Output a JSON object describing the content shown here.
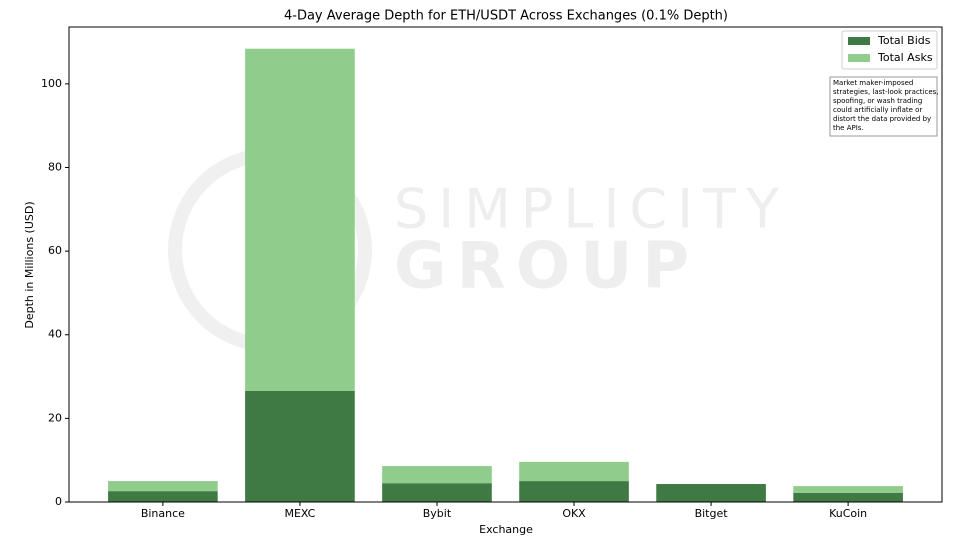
{
  "chart_data": {
    "type": "stacked-bar",
    "title": "4-Day Average Depth for ETH/USDT Across Exchanges (0.1% Depth)",
    "x_label": "Exchange",
    "y_label": "Depth in Millions (USD)",
    "categories": [
      "Binance",
      "MEXC",
      "Bybit",
      "OKX",
      "Bitget",
      "KuCoin"
    ],
    "series": [
      {
        "name": "Total Bids",
        "color": "#3f7a45",
        "values": [
          2.6,
          26.6,
          4.5,
          5.0,
          4.3,
          2.2
        ]
      },
      {
        "name": "Total Asks",
        "color": "#90cc8b",
        "values": [
          2.4,
          81.8,
          4.1,
          4.6,
          0,
          1.6
        ]
      }
    ],
    "ylim": [
      0,
      113.6
    ],
    "yticks": [
      0,
      20,
      40,
      60,
      80,
      100
    ],
    "legend": "upper-right",
    "annotation": [
      "Market maker-imposed",
      "strategies, last-look practices,",
      "spoofing, or wash trading",
      "could artificially inflate or",
      "distort the data provided by",
      "the APIs."
    ],
    "watermark": [
      "SIMPLICITY",
      "GROUP"
    ]
  }
}
